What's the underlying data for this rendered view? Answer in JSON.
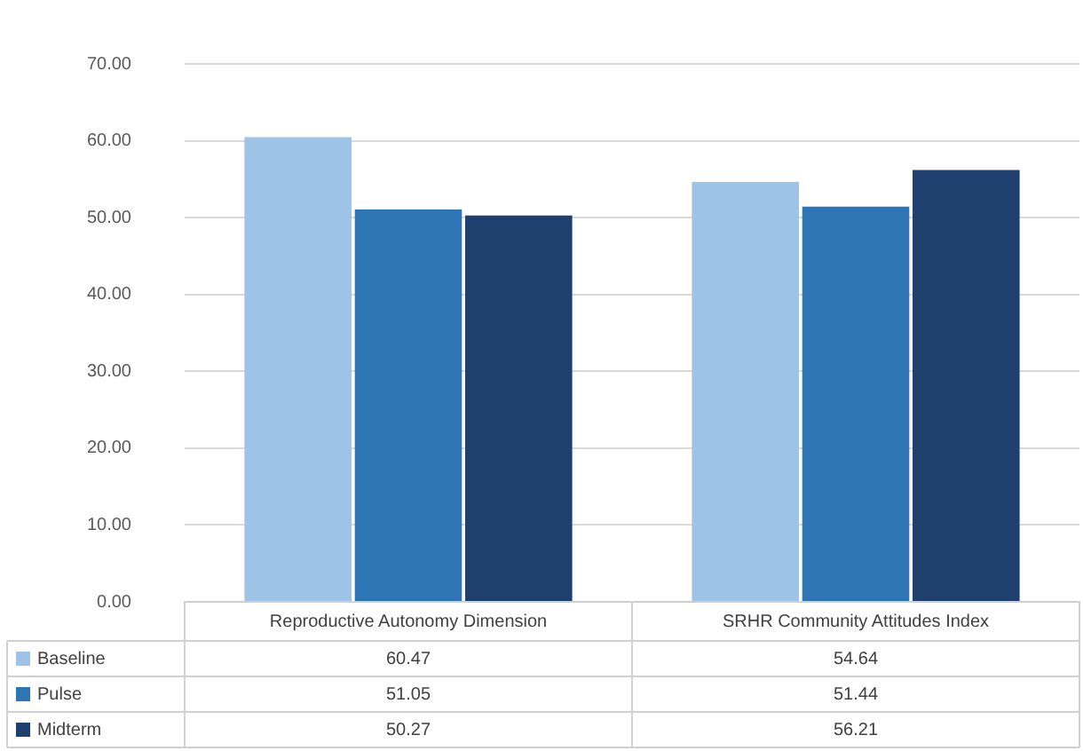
{
  "chart_data": {
    "type": "bar",
    "categories": [
      "Reproductive Autonomy Dimension",
      "SRHR Community Attitudes Index"
    ],
    "series": [
      {
        "name": "Baseline",
        "color": "#9dc3e6",
        "values": [
          60.47,
          54.64
        ]
      },
      {
        "name": "Pulse",
        "color": "#2e75b6",
        "values": [
          51.05,
          51.44
        ]
      },
      {
        "name": "Midterm",
        "color": "#1f3f6e",
        "values": [
          50.27,
          56.21
        ]
      }
    ],
    "ylim": [
      0,
      70
    ],
    "yticks": [
      {
        "value": 0,
        "label": "0.00"
      },
      {
        "value": 10,
        "label": "10.00"
      },
      {
        "value": 20,
        "label": "20.00"
      },
      {
        "value": 30,
        "label": "30.00"
      },
      {
        "value": 40,
        "label": "40.00"
      },
      {
        "value": 50,
        "label": "50.00"
      },
      {
        "value": 60,
        "label": "60.00"
      },
      {
        "value": 70,
        "label": "70.00"
      }
    ],
    "grid": "y",
    "legend": "bottom left",
    "data_labels": true
  }
}
